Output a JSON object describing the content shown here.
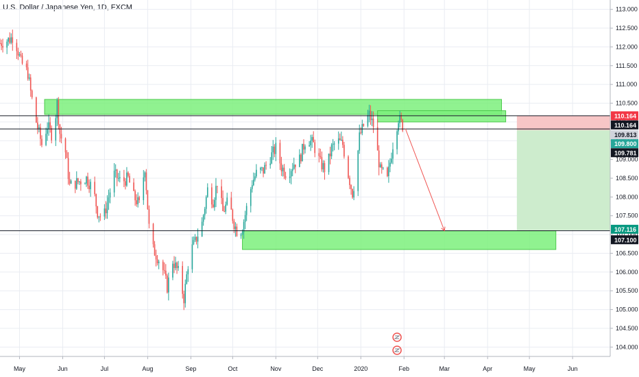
{
  "chart_data": {
    "type": "candlestick",
    "title": "U.S. Dollar / Japanese Yen, 1D, FXCM",
    "colors": {
      "up": "#26a69a",
      "down": "#ef5350",
      "zone": "#7cf07c",
      "zone_border": "#4cc94c",
      "risk": "#f7c6c6",
      "reward": "#cdeccd",
      "arrow": "#ef5350",
      "grid": "#e9ecf2"
    },
    "ylim": [
      103.75,
      113.25
    ],
    "y_ticks": [
      "113.000",
      "112.500",
      "112.000",
      "111.500",
      "111.000",
      "110.500",
      "110.000",
      "109.500",
      "109.000",
      "108.500",
      "108.000",
      "107.500",
      "107.000",
      "106.500",
      "106.000",
      "105.500",
      "105.000",
      "104.500",
      "104.000"
    ],
    "x_ticks": [
      {
        "label": "May",
        "day": 2
      },
      {
        "label": "Jun",
        "day": 33
      },
      {
        "label": "Jul",
        "day": 63
      },
      {
        "label": "Aug",
        "day": 94
      },
      {
        "label": "Sep",
        "day": 125
      },
      {
        "label": "Oct",
        "day": 155
      },
      {
        "label": "Nov",
        "day": 186
      },
      {
        "label": "Dec",
        "day": 216
      },
      {
        "label": "2020",
        "day": 247
      },
      {
        "label": "Feb",
        "day": 278
      },
      {
        "label": "Mar",
        "day": 307
      },
      {
        "label": "Apr",
        "day": 338
      },
      {
        "label": "May",
        "day": 368
      },
      {
        "label": "Jun",
        "day": 399
      }
    ],
    "day_range": [
      -12,
      426
    ],
    "price_waypoints": [
      [
        -12,
        112.1
      ],
      [
        -5,
        112.2
      ],
      [
        -2,
        112.3
      ],
      [
        3,
        111.6
      ],
      [
        8,
        111.3
      ],
      [
        10,
        110.8
      ],
      [
        14,
        110.0
      ],
      [
        18,
        109.4
      ],
      [
        22,
        109.9
      ],
      [
        26,
        109.6
      ],
      [
        29,
        110.5
      ],
      [
        31,
        109.7
      ],
      [
        35,
        109.2
      ],
      [
        38,
        108.3
      ],
      [
        44,
        108.4
      ],
      [
        50,
        108.5
      ],
      [
        55,
        108.2
      ],
      [
        58,
        107.6
      ],
      [
        62,
        107.4
      ],
      [
        66,
        108.0
      ],
      [
        70,
        108.6
      ],
      [
        75,
        108.4
      ],
      [
        80,
        108.5
      ],
      [
        84,
        108.0
      ],
      [
        88,
        107.8
      ],
      [
        92,
        108.8
      ],
      [
        95,
        107.2
      ],
      [
        98,
        106.6
      ],
      [
        104,
        106.2
      ],
      [
        108,
        105.6
      ],
      [
        112,
        106.3
      ],
      [
        116,
        106.0
      ],
      [
        120,
        105.3
      ],
      [
        124,
        106.5
      ],
      [
        128,
        106.8
      ],
      [
        133,
        107.3
      ],
      [
        137,
        108.2
      ],
      [
        141,
        107.9
      ],
      [
        144,
        108.4
      ],
      [
        148,
        107.6
      ],
      [
        152,
        107.9
      ],
      [
        156,
        107.3
      ],
      [
        159,
        107.0
      ],
      [
        162,
        107.2
      ],
      [
        165,
        107.7
      ],
      [
        169,
        108.4
      ],
      [
        173,
        108.7
      ],
      [
        177,
        108.7
      ],
      [
        181,
        109.0
      ],
      [
        186,
        109.3
      ],
      [
        190,
        108.8
      ],
      [
        194,
        108.6
      ],
      [
        199,
        108.9
      ],
      [
        203,
        109.0
      ],
      [
        208,
        109.6
      ],
      [
        213,
        109.4
      ],
      [
        218,
        108.9
      ],
      [
        222,
        108.7
      ],
      [
        226,
        109.3
      ],
      [
        230,
        109.5
      ],
      [
        234,
        109.4
      ],
      [
        238,
        108.6
      ],
      [
        241,
        108.1
      ],
      [
        243,
        108.5
      ],
      [
        246,
        109.6
      ],
      [
        250,
        110.0
      ],
      [
        253,
        110.2
      ],
      [
        256,
        109.9
      ],
      [
        258,
        109.4
      ],
      [
        261,
        108.7
      ],
      [
        264,
        108.6
      ],
      [
        266,
        108.45
      ],
      [
        270,
        109.4
      ],
      [
        274,
        110.1
      ],
      [
        277,
        109.9
      ],
      [
        279,
        109.9
      ]
    ],
    "zones": [
      {
        "name": "resistance-zone-upper",
        "x0": 20,
        "x1": 348,
        "y0": 110.6,
        "y1": 110.2
      },
      {
        "name": "resistance-zone-small",
        "x0": 259,
        "x1": 351,
        "y0": 110.3,
        "y1": 110.0
      },
      {
        "name": "support-zone",
        "x0": 162,
        "x1": 387,
        "y0": 107.1,
        "y1": 106.6
      }
    ],
    "position": {
      "x0": 359,
      "x1": 426,
      "stop": 110.164,
      "entry": 109.781,
      "target": 107.116
    },
    "hlines": [
      {
        "name": "hline-110164",
        "price": 110.164
      },
      {
        "name": "hline-109813",
        "price": 109.813
      },
      {
        "name": "hline-107100",
        "price": 107.1
      }
    ],
    "arrow": {
      "from": [
        279,
        109.82
      ],
      "to": [
        307,
        107.1
      ]
    },
    "price_tags": [
      {
        "name": "tag-110164-red",
        "label": "110.164",
        "price": 110.164,
        "bg": "#f23645",
        "fg": "#ffffff"
      },
      {
        "name": "tag-110164-black",
        "label": "110.164",
        "price": 109.92,
        "bg": "#131722",
        "fg": "#ffffff"
      },
      {
        "name": "tag-109813",
        "label": "109.813",
        "price": 109.66,
        "bg": "#d1d4dc",
        "fg": "#131722"
      },
      {
        "name": "tag-109800",
        "label": "109.800",
        "price": 109.42,
        "bg": "#26a69a",
        "fg": "#ffffff"
      },
      {
        "name": "tag-109781",
        "label": "109.781",
        "price": 109.18,
        "bg": "#131722",
        "fg": "#ffffff"
      },
      {
        "name": "tag-107116",
        "label": "107.116",
        "price": 107.14,
        "bg": "#089981",
        "fg": "#ffffff"
      },
      {
        "name": "tag-107100",
        "label": "107.100",
        "price": 106.86,
        "bg": "#131722",
        "fg": "#ffffff"
      }
    ]
  }
}
